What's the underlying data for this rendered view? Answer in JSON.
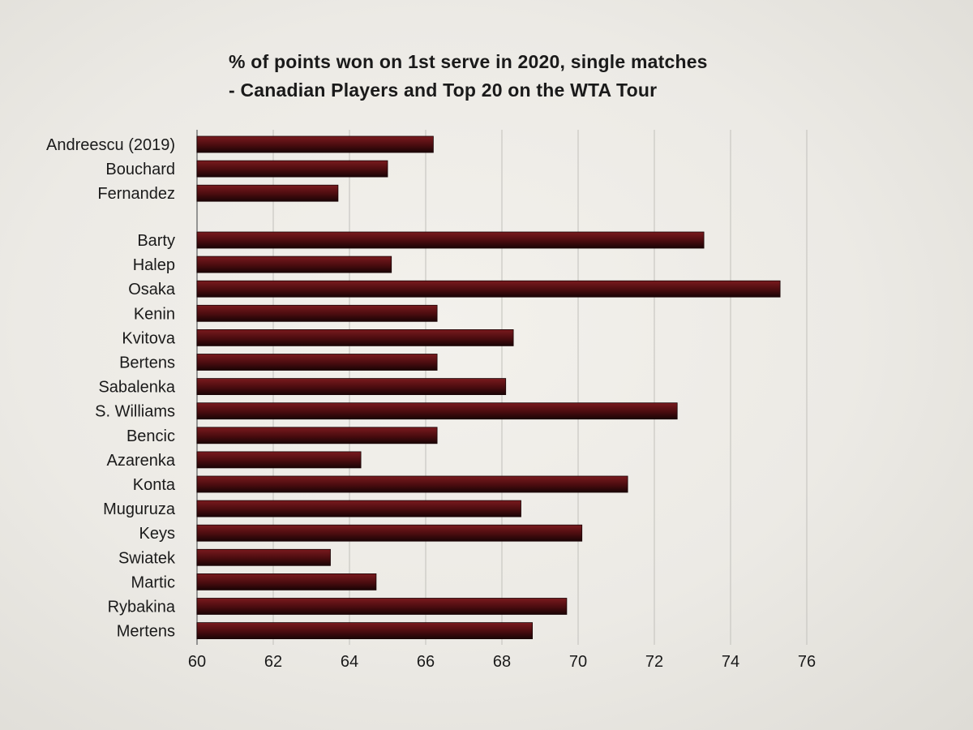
{
  "chart_data": {
    "type": "bar",
    "orientation": "horizontal",
    "title_line1": "% of points won on 1st serve in 2020, single matches",
    "title_line2": "- Canadian Players and Top 20 on the WTA Tour",
    "xlabel": "",
    "ylabel": "",
    "xlim": [
      60,
      76
    ],
    "xticks": [
      "60",
      "62",
      "64",
      "66",
      "68",
      "70",
      "72",
      "74",
      "76"
    ],
    "grid": "vertical",
    "bar_color": "#5a0f12",
    "categories": [
      "Andreescu (2019)",
      "Bouchard",
      "Fernandez",
      "Barty",
      "Halep",
      "Osaka",
      "Kenin",
      "Kvitova",
      "Bertens",
      "Sabalenka",
      "S. Williams",
      "Bencic",
      "Azarenka",
      "Konta",
      "Muguruza",
      "Keys",
      "Swiatek",
      "Martic",
      "Rybakina",
      "Mertens"
    ],
    "values": [
      66.2,
      65.0,
      63.7,
      73.3,
      65.1,
      75.3,
      66.3,
      68.3,
      66.3,
      68.1,
      72.6,
      66.3,
      64.3,
      71.3,
      68.5,
      70.1,
      63.5,
      64.7,
      69.7,
      68.8
    ],
    "groups": [
      {
        "name": "Canadian",
        "count": 3
      },
      {
        "name": "Top 20",
        "count": 17
      }
    ]
  }
}
